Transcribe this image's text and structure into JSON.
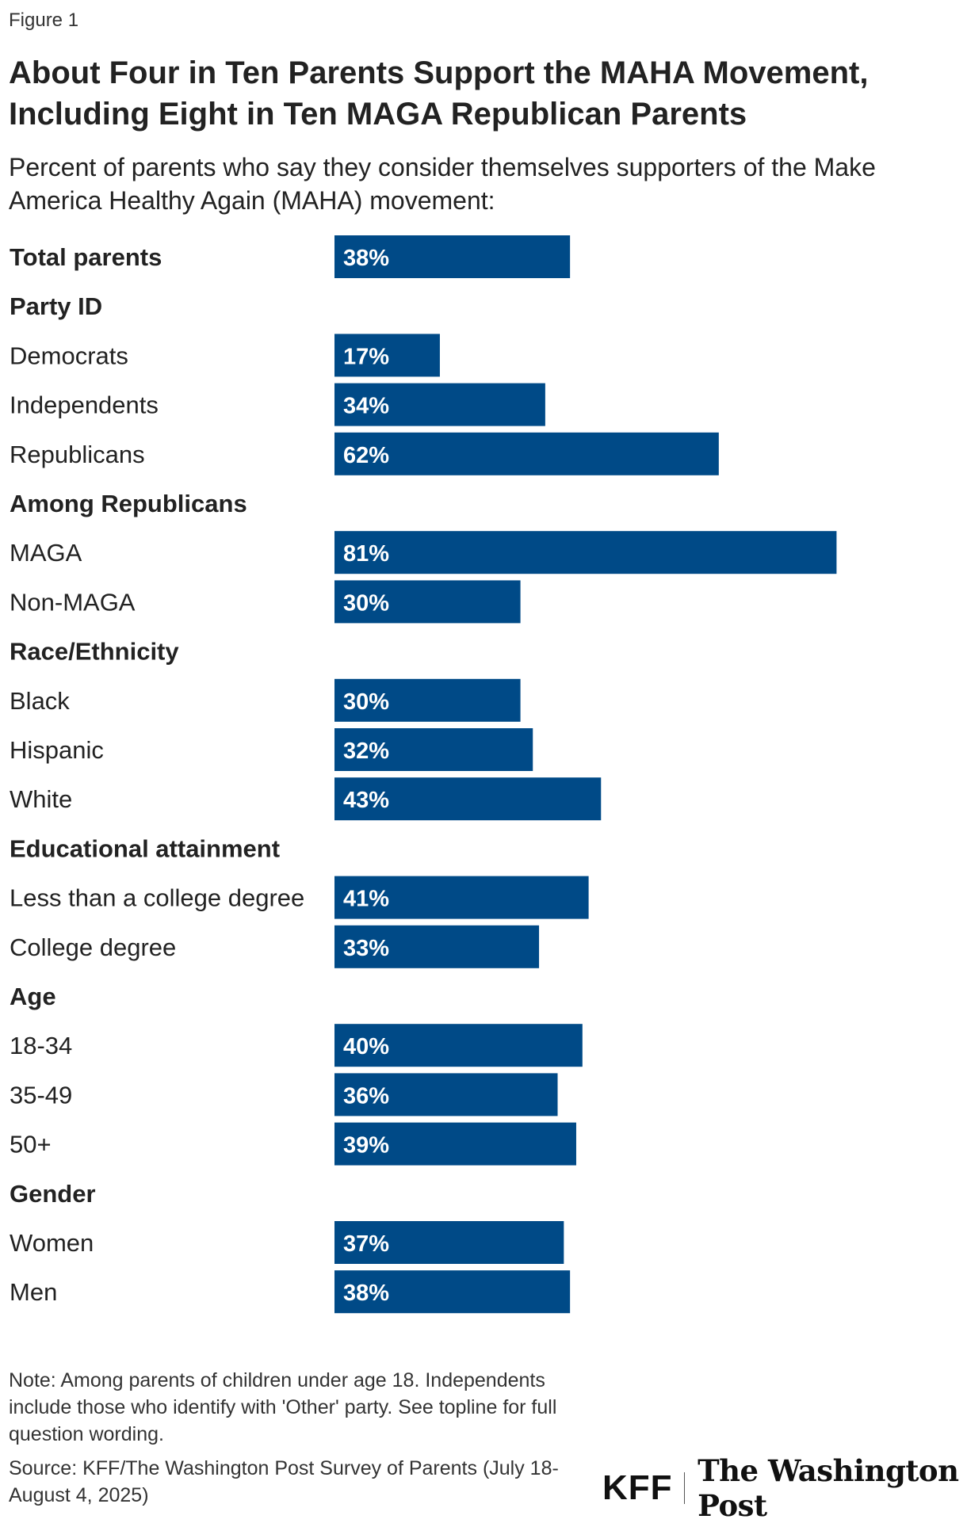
{
  "figure_label": "Figure 1",
  "title": "About Four in Ten Parents Support the MAHA Movement, Including Eight in Ten MAGA Republican Parents",
  "subtitle": "Percent of parents who say they consider themselves supporters of the Make America Healthy Again (MAHA) movement:",
  "chart_data": {
    "type": "bar",
    "orientation": "horizontal",
    "title": "About Four in Ten Parents Support the MAHA Movement, Including Eight in Ten MAGA Republican Parents",
    "subtitle": "Percent of parents who say they consider themselves supporters of the Make America Healthy Again (MAHA) movement:",
    "unit": "%",
    "xlim": [
      0,
      100
    ],
    "bar_color": "#004a87",
    "value_label_color": "#ffffff",
    "rows": [
      {
        "label": "Total parents",
        "value": 38,
        "label_style": "bold"
      },
      {
        "label": "Party ID",
        "value": null,
        "header": true
      },
      {
        "label": "Democrats",
        "value": 17
      },
      {
        "label": "Independents",
        "value": 34
      },
      {
        "label": "Republicans",
        "value": 62
      },
      {
        "label": "Among Republicans",
        "value": null,
        "header": true
      },
      {
        "label": "MAGA",
        "value": 81
      },
      {
        "label": "Non-MAGA",
        "value": 30
      },
      {
        "label": "Race/Ethnicity",
        "value": null,
        "header": true
      },
      {
        "label": "Black",
        "value": 30
      },
      {
        "label": "Hispanic",
        "value": 32
      },
      {
        "label": "White",
        "value": 43
      },
      {
        "label": "Educational attainment",
        "value": null,
        "header": true
      },
      {
        "label": "Less than a college degree",
        "value": 41
      },
      {
        "label": "College degree",
        "value": 33
      },
      {
        "label": "Age",
        "value": null,
        "header": true
      },
      {
        "label": "18-34",
        "value": 40
      },
      {
        "label": "35-49",
        "value": 36
      },
      {
        "label": "50+",
        "value": 39
      },
      {
        "label": "Gender",
        "value": null,
        "header": true
      },
      {
        "label": "Women",
        "value": 37
      },
      {
        "label": "Men",
        "value": 38
      }
    ]
  },
  "note": "Note: Among parents of children under age 18. Independents include those who identify with 'Other' party. See topline for full question wording.",
  "source": "Source: KFF/The Washington Post Survey of Parents (July 18-August 4, 2025)",
  "logos": {
    "kff": "KFF",
    "wapo": "The Washington Post"
  }
}
